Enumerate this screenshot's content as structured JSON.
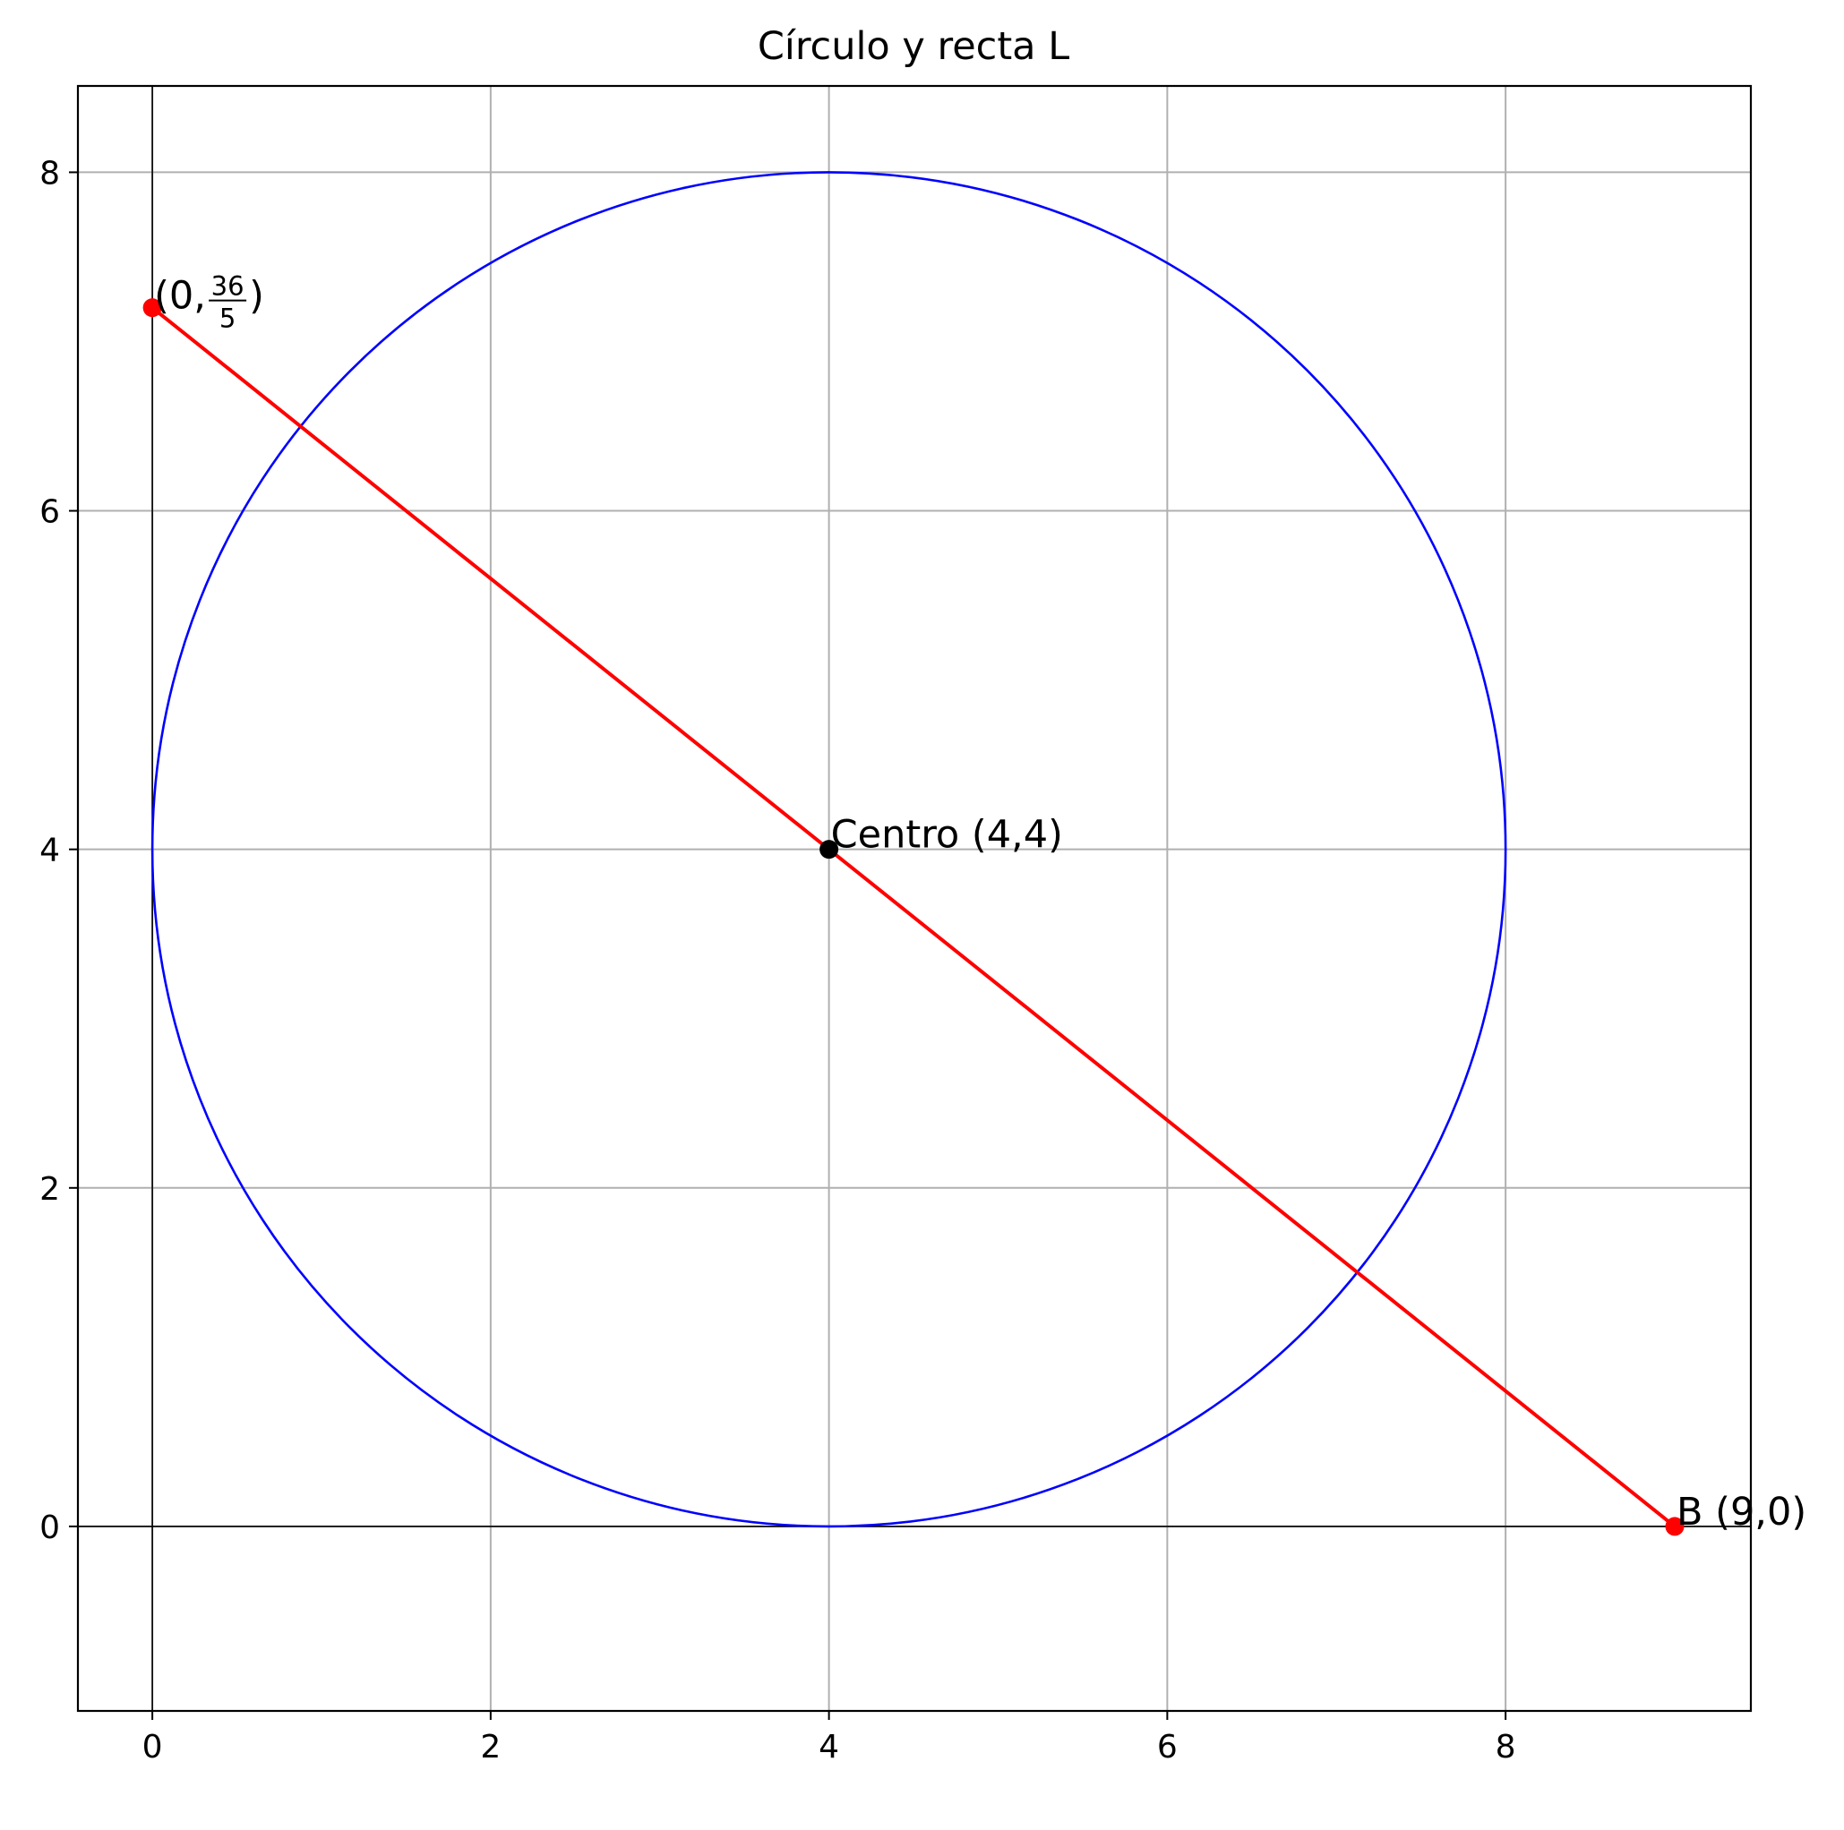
{
  "chart_data": {
    "type": "line",
    "title": "Círculo y recta L",
    "xlabel": "",
    "ylabel": "",
    "xlim": [
      -0.44,
      9.45
    ],
    "ylim": [
      -1.09,
      8.51
    ],
    "xticks": [
      "0",
      "2",
      "4",
      "6",
      "8"
    ],
    "yticks": [
      "0",
      "2",
      "4",
      "6",
      "8"
    ],
    "grid": true,
    "circle": {
      "center": [
        4,
        4
      ],
      "radius": 4,
      "color": "#0000ff"
    },
    "line": {
      "points": [
        [
          0,
          7.2
        ],
        [
          4,
          4
        ],
        [
          9,
          0
        ]
      ],
      "color": "#ff0000"
    },
    "points": [
      {
        "x": 0,
        "y": 7.2,
        "color": "#ff0000"
      },
      {
        "x": 9,
        "y": 0,
        "color": "#ff0000"
      },
      {
        "x": 4,
        "y": 4,
        "color": "#000000"
      }
    ],
    "annotations": [
      {
        "x": 0,
        "y": 7.2,
        "prefix": "(0,",
        "numerator": "36",
        "denominator": "5",
        "suffix": ")"
      },
      {
        "x": 4,
        "y": 4,
        "text": "Centro (4,4)"
      },
      {
        "x": 9,
        "y": 0,
        "text": "B (9,0)"
      }
    ],
    "colors": {
      "grid": "#b0b0b0",
      "axes": "#000000",
      "background": "#ffffff"
    }
  }
}
